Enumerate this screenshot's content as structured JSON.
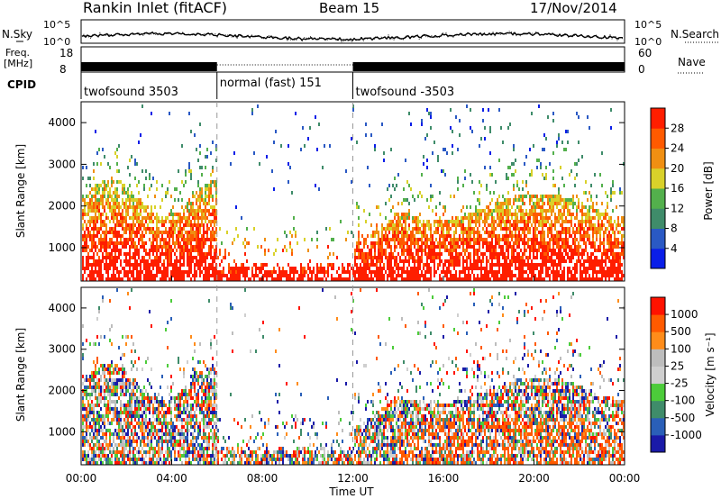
{
  "header": {
    "station": "Rankin Inlet (fitACF)",
    "beam": "Beam 15",
    "date": "17/Nov/2014"
  },
  "top_panels": {
    "nsky_label": "N.Sky",
    "nsearch_label": "N.Search",
    "noise_ticks": [
      "10^5",
      "10^0"
    ],
    "freq_label": "Freq.",
    "freq_unit": "[MHz]",
    "freq_ticks": [
      "18",
      "8"
    ],
    "nave_label": "Nave",
    "nave_ticks": [
      "60",
      "0"
    ],
    "cpid_label": "CPID",
    "cpid_segments": [
      {
        "label": "twofsound 3503",
        "start_hour": 0,
        "end_hour": 6
      },
      {
        "label": "normal (fast) 151",
        "start_hour": 6,
        "end_hour": 12
      },
      {
        "label": "twofsound -3503",
        "start_hour": 12,
        "end_hour": 24
      }
    ]
  },
  "colors": {
    "power": [
      "#0a1ee8",
      "#2a59c4",
      "#3f8c6a",
      "#53b04c",
      "#d9d12a",
      "#f08f12",
      "#ff5a00",
      "#ff1e00"
    ],
    "velocity": [
      "#ff1200",
      "#ff5a00",
      "#ff8c1a",
      "#bdbdbd",
      "#cfcfcf",
      "#4ccc3a",
      "#3f8c6a",
      "#2a5fb8",
      "#1a1aa8"
    ],
    "ground": "#bdbdbd"
  },
  "chart_data": [
    {
      "type": "heatmap",
      "name": "power",
      "ylabel": "Slant Range [km]",
      "ylim": [
        200,
        4500
      ],
      "xlim_hours": [
        0,
        24
      ],
      "yticks": [
        1000,
        2000,
        3000,
        4000
      ],
      "colorbar_label": "Power [dB]",
      "colorbar_ticks": [
        "4",
        "8",
        "12",
        "16",
        "20",
        "24",
        "28"
      ]
    },
    {
      "type": "heatmap",
      "name": "velocity",
      "ylabel": "Slant Range [km]",
      "ylim": [
        200,
        4500
      ],
      "xlim_hours": [
        0,
        24
      ],
      "yticks": [
        1000,
        2000,
        3000,
        4000
      ],
      "colorbar_label": "Velocity [m s⁻¹]",
      "colorbar_ticks": [
        "1000",
        "500",
        "100",
        "25",
        "-25",
        "-100",
        "-500",
        "-1000"
      ]
    }
  ],
  "x_axis": {
    "ticks": [
      "00:00",
      "04:00",
      "08:00",
      "12:00",
      "16:00",
      "20:00",
      "00:00"
    ],
    "label": "Time UT"
  }
}
